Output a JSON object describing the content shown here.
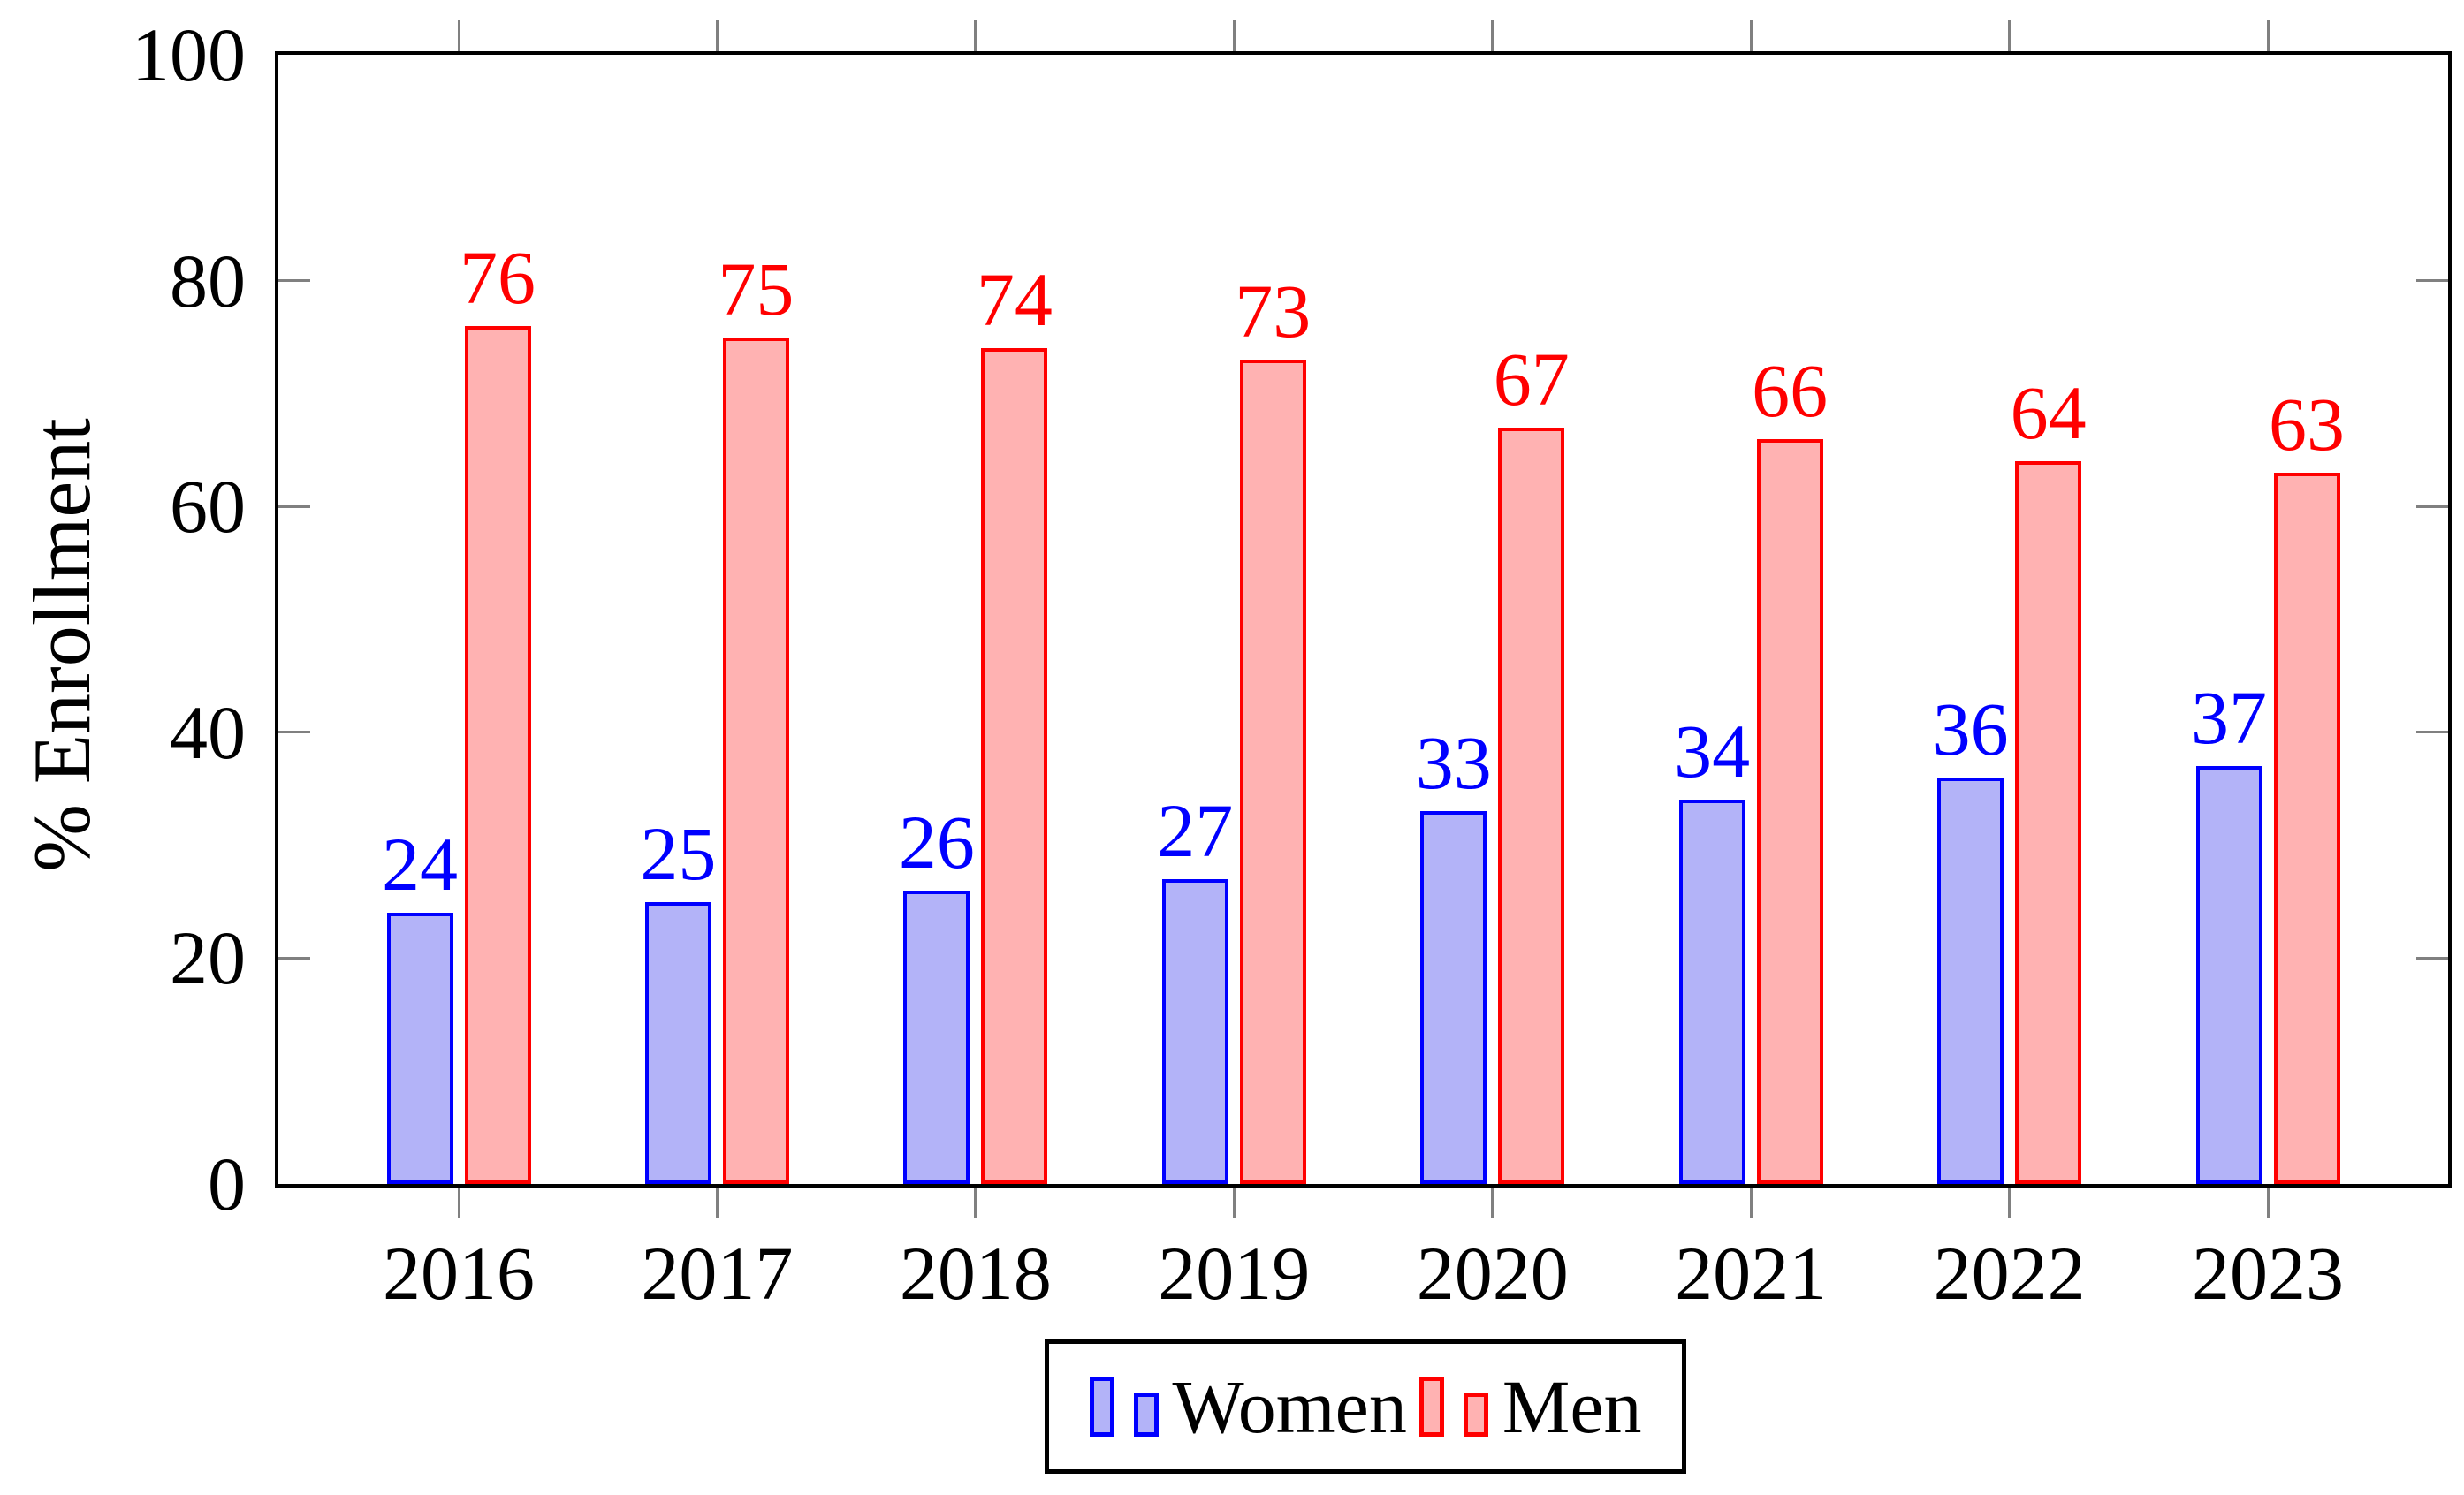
{
  "chart_data": {
    "type": "bar",
    "title": "",
    "xlabel": "",
    "ylabel": "% Enrollment",
    "categories": [
      "2016",
      "2017",
      "2018",
      "2019",
      "2020",
      "2021",
      "2022",
      "2023"
    ],
    "series": [
      {
        "name": "Women",
        "values": [
          24,
          25,
          26,
          27,
          33,
          34,
          36,
          37
        ],
        "fill": "#B3B3F8",
        "stroke": "#0000FF"
      },
      {
        "name": "Men",
        "values": [
          76,
          75,
          74,
          73,
          67,
          66,
          64,
          63
        ],
        "fill": "#FFB2B2",
        "stroke": "#FF0000"
      }
    ],
    "ylim": [
      0,
      100
    ],
    "yticks": [
      0,
      20,
      40,
      60,
      80,
      100
    ],
    "bar_value_labels": true,
    "grid": false,
    "legend_position": "bottom",
    "axis_frame_color": "#000000",
    "tick_color": "#808080"
  }
}
